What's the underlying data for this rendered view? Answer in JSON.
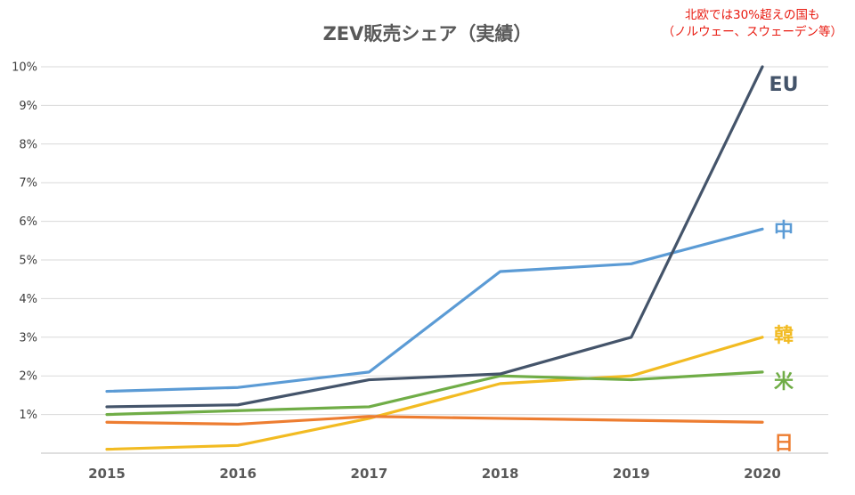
{
  "chart_data": {
    "type": "line",
    "title": "ZEV販売シェア（実績）",
    "annotation": {
      "line1": "北欧では30%超えの国も",
      "line2": "（ノルウェー、スウェーデン等）",
      "color": "#e8190f"
    },
    "x": [
      "2015",
      "2016",
      "2017",
      "2018",
      "2019",
      "2020"
    ],
    "ylim": [
      0,
      10
    ],
    "yticks": [
      "1%",
      "2%",
      "3%",
      "4%",
      "5%",
      "6%",
      "7%",
      "8%",
      "9%",
      "10%"
    ],
    "grid": true,
    "legend": "direct-labels-right",
    "series": [
      {
        "name": "EU",
        "color": "#44546a",
        "values": [
          1.2,
          1.25,
          1.9,
          2.05,
          3.0,
          10.0
        ]
      },
      {
        "name": "中",
        "color": "#5b9bd5",
        "values": [
          1.6,
          1.7,
          2.1,
          4.7,
          4.9,
          5.8
        ]
      },
      {
        "name": "韓",
        "color": "#f2bb22",
        "values": [
          0.1,
          0.2,
          0.9,
          1.8,
          2.0,
          3.0
        ]
      },
      {
        "name": "米",
        "color": "#70ad47",
        "values": [
          1.0,
          1.1,
          1.2,
          2.0,
          1.9,
          2.1
        ]
      },
      {
        "name": "日",
        "color": "#ed7d31",
        "values": [
          0.8,
          0.75,
          0.95,
          0.9,
          0.85,
          0.8
        ]
      }
    ]
  }
}
